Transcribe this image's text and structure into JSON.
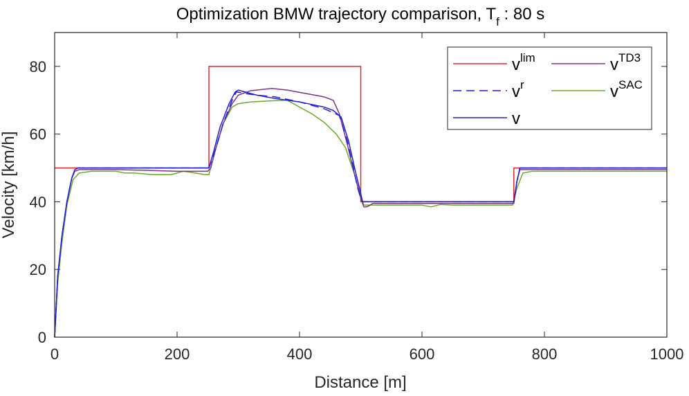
{
  "chart_data": {
    "type": "line",
    "title": "Optimization BMW trajectory comparison, T",
    "title_subscript": "f",
    "title_suffix": " : 80 s",
    "xlabel": "Distance [m]",
    "ylabel": "Velocity [km/h]",
    "xlim": [
      0,
      1000
    ],
    "ylim": [
      0,
      90
    ],
    "xticks": [
      0,
      200,
      400,
      600,
      800,
      1000
    ],
    "yticks": [
      0,
      20,
      40,
      60,
      80
    ],
    "xtick_labels": [
      "0",
      "200",
      "400",
      "600",
      "800",
      "1000"
    ],
    "ytick_labels": [
      "0",
      "20",
      "40",
      "60",
      "80"
    ],
    "legend_position": "top-right",
    "series": [
      {
        "key": "vlim",
        "base": "v",
        "sup": "lim",
        "color": "#e8262b",
        "dash": false,
        "x": [
          0,
          252,
          252,
          500,
          500,
          750,
          750,
          1000
        ],
        "y": [
          50,
          50,
          80,
          80,
          40,
          40,
          50,
          50
        ]
      },
      {
        "key": "vr",
        "base": "v",
        "sup": "r",
        "color": "#1f1fd6",
        "dash": true,
        "x": [
          0,
          5,
          12,
          20,
          28,
          33,
          38,
          60,
          100,
          150,
          200,
          250,
          252,
          262,
          275,
          290,
          297,
          310,
          330,
          360,
          400,
          440,
          465,
          478,
          488,
          495,
          500,
          503,
          506,
          550,
          600,
          650,
          700,
          745,
          750,
          755,
          760,
          800,
          900,
          1000
        ],
        "y": [
          0,
          18,
          30,
          40,
          47,
          49.5,
          50,
          50,
          50,
          50,
          50,
          50,
          50,
          55,
          63,
          70,
          72.5,
          72,
          71.5,
          71,
          69.5,
          67.5,
          65.5,
          58,
          50,
          44,
          41,
          40,
          40,
          40,
          40,
          40,
          40,
          40,
          40,
          46,
          50,
          50,
          50,
          50
        ]
      },
      {
        "key": "v",
        "base": "v",
        "sup": "",
        "color": "#1f1fd6",
        "dash": false,
        "x": [
          0,
          5,
          12,
          20,
          28,
          33,
          38,
          60,
          100,
          150,
          200,
          250,
          252,
          260,
          270,
          285,
          295,
          300,
          310,
          330,
          360,
          400,
          440,
          455,
          468,
          480,
          490,
          498,
          503,
          508,
          550,
          600,
          650,
          700,
          745,
          750,
          755,
          760,
          800,
          900,
          1000
        ],
        "y": [
          0,
          18,
          30,
          40,
          47,
          49.5,
          50,
          50,
          50,
          50,
          50,
          50,
          50,
          55,
          62,
          69,
          72.5,
          73,
          72.5,
          71.5,
          70.5,
          69.5,
          68,
          67,
          65,
          58,
          50,
          44,
          40,
          40,
          40,
          40,
          40,
          40,
          40,
          40,
          46,
          50,
          50,
          50,
          50
        ]
      },
      {
        "key": "vtd3",
        "base": "v",
        "sup": "TD3",
        "color": "#7e2f8e",
        "dash": false,
        "x": [
          0,
          5,
          12,
          20,
          28,
          33,
          40,
          100,
          150,
          200,
          250,
          255,
          262,
          275,
          290,
          300,
          320,
          355,
          380,
          410,
          440,
          455,
          465,
          478,
          490,
          500,
          505,
          510,
          520,
          550,
          600,
          650,
          700,
          740,
          750,
          755,
          760,
          770,
          800,
          900,
          1000
        ],
        "y": [
          0,
          18,
          30,
          40,
          47,
          49,
          49.5,
          49.5,
          49.3,
          49,
          49,
          50,
          55,
          63,
          69,
          71.5,
          72.8,
          73.5,
          73,
          72,
          71,
          70,
          66,
          57,
          48,
          41,
          38.5,
          38.5,
          39.5,
          39.5,
          39.5,
          39.5,
          39.5,
          39.5,
          39.5,
          46,
          49.5,
          49.5,
          49.5,
          49.5,
          49.5
        ]
      },
      {
        "key": "vsac",
        "base": "v",
        "sup": "SAC",
        "color": "#6aaa2a",
        "dash": false,
        "x": [
          0,
          5,
          12,
          20,
          30,
          40,
          60,
          100,
          115,
          130,
          160,
          190,
          200,
          210,
          230,
          245,
          252,
          262,
          275,
          290,
          300,
          320,
          350,
          380,
          400,
          420,
          440,
          460,
          475,
          490,
          500,
          505,
          510,
          550,
          600,
          615,
          630,
          650,
          700,
          740,
          748,
          755,
          765,
          780,
          800,
          900,
          1000
        ],
        "y": [
          0,
          16,
          28,
          39,
          46.5,
          48.5,
          49,
          49,
          48.5,
          48.5,
          48,
          48,
          48.5,
          49,
          48.5,
          48,
          48,
          55,
          63,
          68,
          69,
          69.5,
          69.8,
          70,
          68,
          66,
          63.5,
          60,
          56,
          48,
          41.5,
          39,
          39,
          39,
          39,
          38.5,
          39.2,
          39,
          39,
          39,
          39,
          44,
          48.5,
          49,
          49,
          49,
          49
        ]
      }
    ]
  }
}
